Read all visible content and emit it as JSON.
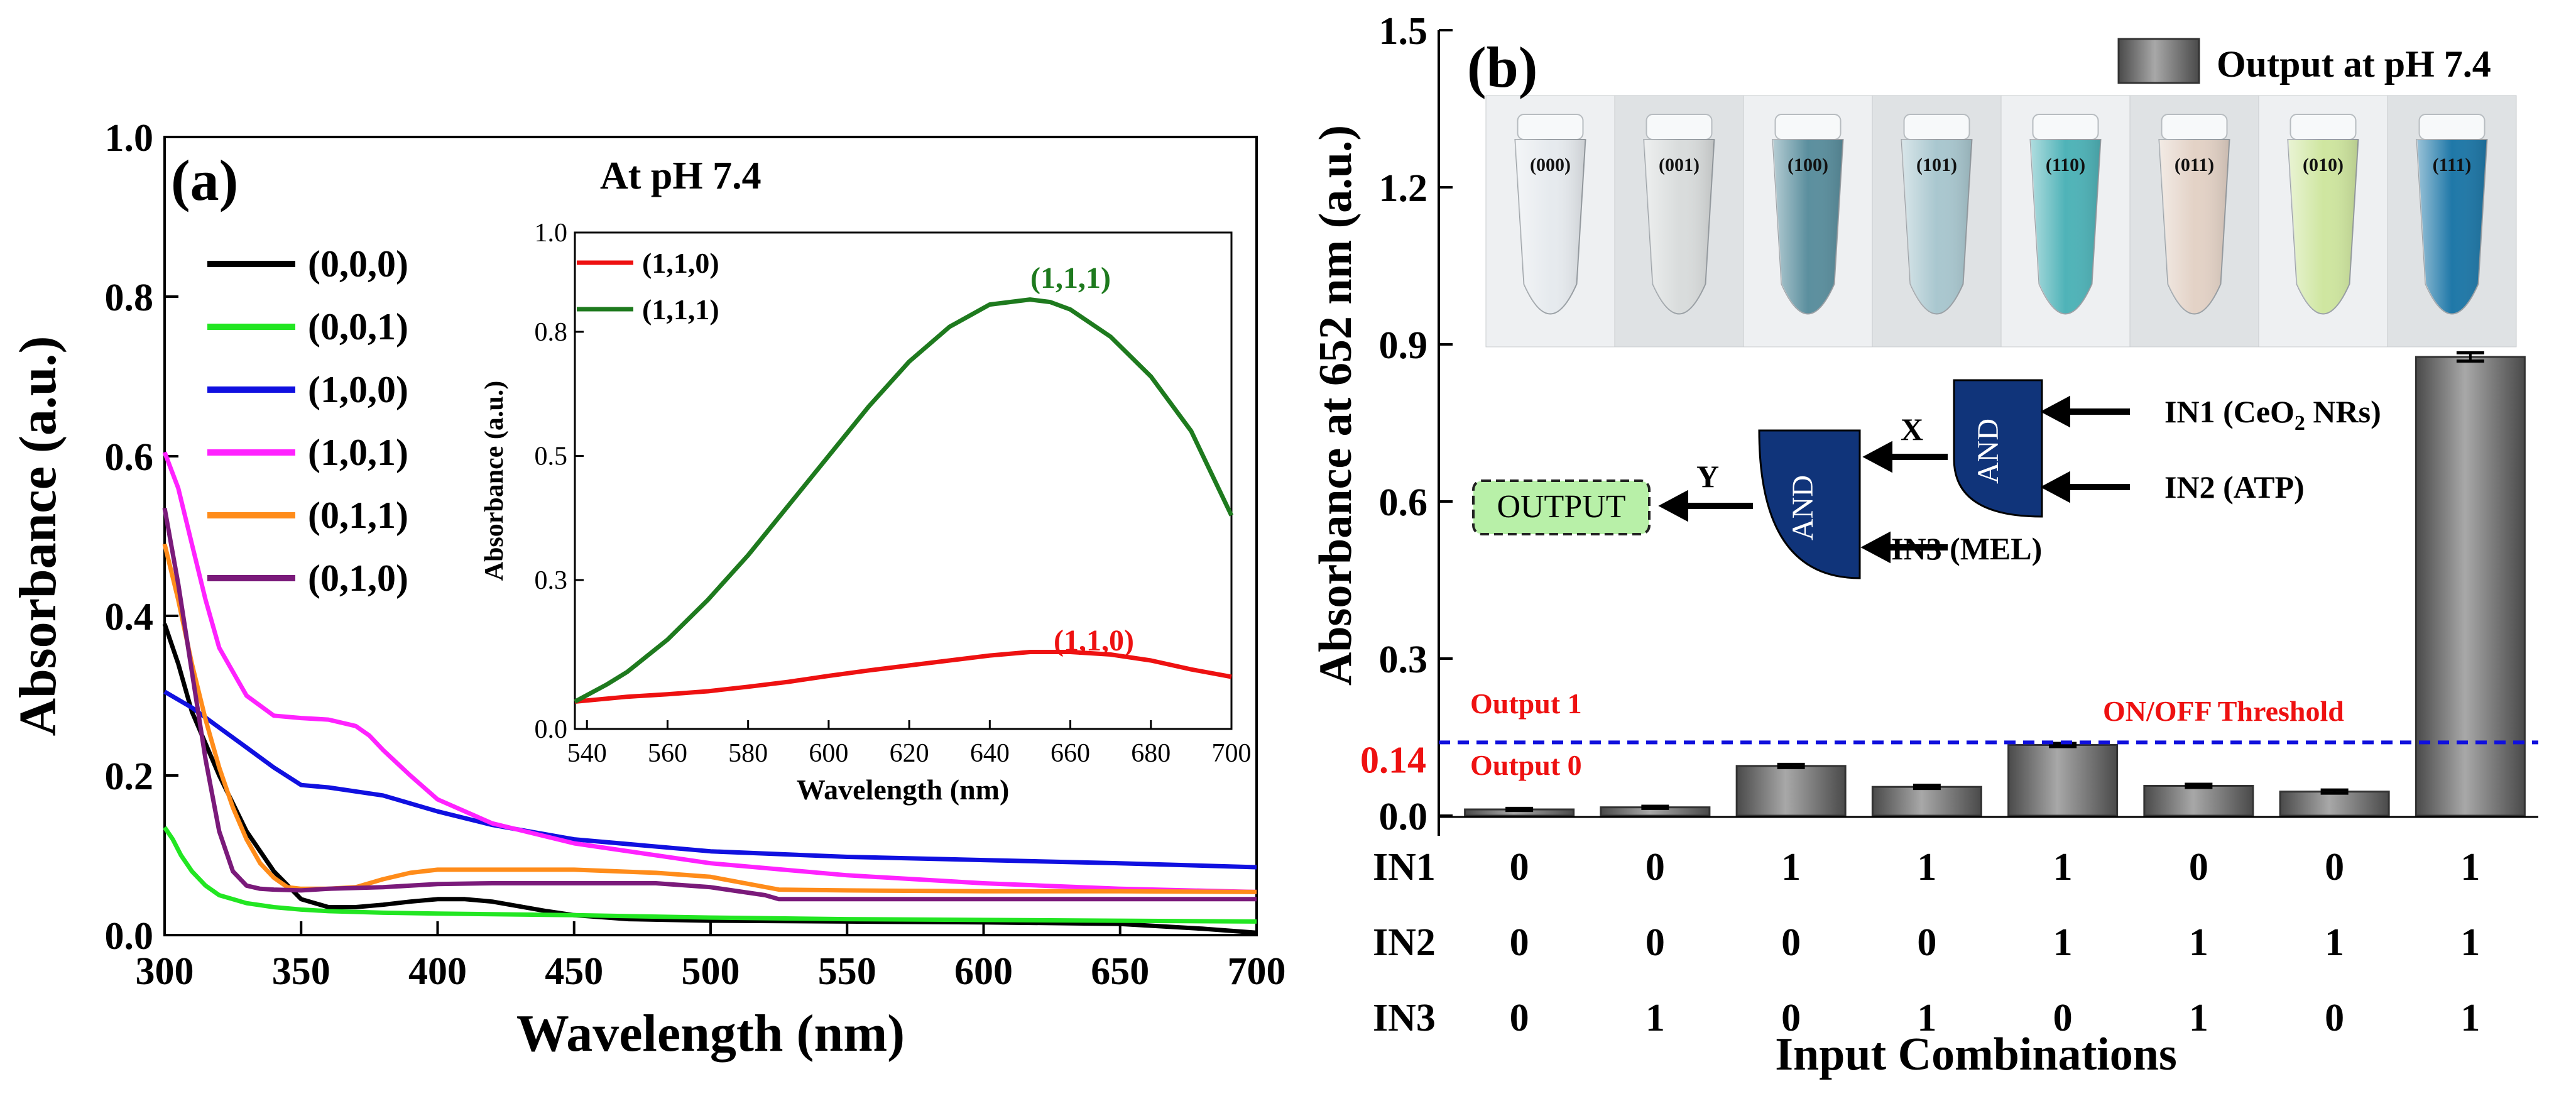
{
  "colors": {
    "black": "#000000",
    "green_bright": "#22e622",
    "blue": "#1010e0",
    "magenta": "#ff22ff",
    "orange": "#ff8c1a",
    "purple": "#7a1a7a",
    "red": "#ee1111",
    "dark_green": "#1e7a1e",
    "threshold_blue": "#1010dd",
    "gate_navy": "#10347a",
    "output_box": "#b8f0a8",
    "bar_fill": "#777777"
  },
  "chart_data": [
    {
      "type": "line",
      "panel_label": "(a)",
      "title": "At pH 7.4",
      "xlabel": "Wavelength (nm)",
      "ylabel": "Absorbance (a.u.)",
      "xlim": [
        300,
        700
      ],
      "ylim": [
        0,
        1.0
      ],
      "xticks": [
        "300",
        "350",
        "400",
        "450",
        "500",
        "550",
        "600",
        "650",
        "700"
      ],
      "yticks": [
        "0.0",
        "0.2",
        "0.4",
        "0.6",
        "0.8",
        "1.0"
      ],
      "series": [
        {
          "name": "(0,0,0)",
          "color": "#000000",
          "x": [
            300,
            305,
            310,
            320,
            330,
            340,
            350,
            360,
            370,
            380,
            390,
            400,
            410,
            420,
            430,
            440,
            450,
            470,
            500,
            550,
            600,
            650,
            680,
            700
          ],
          "y": [
            0.39,
            0.34,
            0.28,
            0.2,
            0.13,
            0.08,
            0.045,
            0.035,
            0.035,
            0.038,
            0.042,
            0.045,
            0.045,
            0.042,
            0.036,
            0.03,
            0.025,
            0.02,
            0.018,
            0.017,
            0.016,
            0.014,
            0.008,
            0.003
          ]
        },
        {
          "name": "(0,0,1)",
          "color": "#22e622",
          "x": [
            300,
            303,
            306,
            310,
            315,
            320,
            330,
            340,
            350,
            360,
            380,
            400,
            450,
            500,
            550,
            600,
            650,
            700
          ],
          "y": [
            0.135,
            0.12,
            0.1,
            0.08,
            0.062,
            0.05,
            0.04,
            0.035,
            0.032,
            0.03,
            0.028,
            0.027,
            0.025,
            0.022,
            0.02,
            0.019,
            0.018,
            0.017
          ]
        },
        {
          "name": "(1,0,0)",
          "color": "#1010e0",
          "x": [
            300,
            310,
            320,
            330,
            340,
            350,
            360,
            380,
            400,
            420,
            450,
            500,
            550,
            600,
            650,
            700
          ],
          "y": [
            0.305,
            0.285,
            0.26,
            0.235,
            0.21,
            0.188,
            0.185,
            0.175,
            0.155,
            0.138,
            0.12,
            0.105,
            0.098,
            0.094,
            0.09,
            0.085
          ]
        },
        {
          "name": "(1,0,1)",
          "color": "#ff22ff",
          "x": [
            300,
            305,
            310,
            315,
            320,
            330,
            340,
            350,
            360,
            370,
            375,
            380,
            390,
            400,
            420,
            450,
            500,
            550,
            600,
            650,
            700
          ],
          "y": [
            0.605,
            0.56,
            0.49,
            0.42,
            0.36,
            0.3,
            0.275,
            0.272,
            0.27,
            0.262,
            0.25,
            0.232,
            0.2,
            0.17,
            0.14,
            0.115,
            0.09,
            0.075,
            0.065,
            0.058,
            0.054
          ]
        },
        {
          "name": "(0,1,1)",
          "color": "#ff8c1a",
          "x": [
            300,
            305,
            310,
            315,
            320,
            325,
            330,
            335,
            340,
            345,
            350,
            360,
            370,
            380,
            390,
            400,
            450,
            480,
            500,
            525,
            550,
            600,
            650,
            700
          ],
          "y": [
            0.49,
            0.42,
            0.34,
            0.27,
            0.21,
            0.16,
            0.12,
            0.09,
            0.072,
            0.06,
            0.058,
            0.058,
            0.06,
            0.07,
            0.078,
            0.082,
            0.082,
            0.078,
            0.073,
            0.057,
            0.056,
            0.055,
            0.055,
            0.054
          ]
        },
        {
          "name": "(0,1,0)",
          "color": "#7a1a7a",
          "x": [
            300,
            305,
            310,
            315,
            320,
            325,
            330,
            335,
            340,
            350,
            360,
            380,
            400,
            420,
            450,
            470,
            480,
            500,
            520,
            525,
            550,
            600,
            650,
            700
          ],
          "y": [
            0.535,
            0.44,
            0.33,
            0.22,
            0.13,
            0.08,
            0.062,
            0.058,
            0.057,
            0.056,
            0.058,
            0.06,
            0.064,
            0.065,
            0.065,
            0.065,
            0.065,
            0.06,
            0.05,
            0.045,
            0.045,
            0.045,
            0.045,
            0.045
          ]
        }
      ],
      "inset": {
        "type": "line",
        "xlabel": "Wavelength (nm)",
        "ylabel": "Absorbance (a.u.)",
        "xlim": [
          537,
          700
        ],
        "ylim": [
          0,
          1.0
        ],
        "xticks": [
          "540",
          "560",
          "580",
          "600",
          "620",
          "640",
          "660",
          "680",
          "700"
        ],
        "yticks": [
          "0.0",
          "0.3",
          "0.5",
          "0.8",
          "1.0"
        ],
        "series": [
          {
            "name": "(1,1,0)",
            "color": "#ee1111",
            "label": "(1,1,0)",
            "x": [
              537,
              550,
              560,
              570,
              580,
              590,
              600,
              610,
              620,
              630,
              640,
              650,
              660,
              670,
              680,
              690,
              700
            ],
            "y": [
              0.055,
              0.065,
              0.07,
              0.076,
              0.085,
              0.095,
              0.107,
              0.118,
              0.128,
              0.138,
              0.148,
              0.155,
              0.155,
              0.15,
              0.138,
              0.12,
              0.105
            ]
          },
          {
            "name": "(1,1,1)",
            "color": "#1e7a1e",
            "label": "(1,1,1)",
            "x": [
              537,
              545,
              550,
              560,
              570,
              580,
              590,
              600,
              610,
              620,
              630,
              640,
              650,
              655,
              660,
              670,
              680,
              690,
              700
            ],
            "y": [
              0.055,
              0.09,
              0.115,
              0.18,
              0.26,
              0.35,
              0.45,
              0.55,
              0.65,
              0.74,
              0.81,
              0.855,
              0.865,
              0.86,
              0.845,
              0.79,
              0.71,
              0.6,
              0.43
            ]
          }
        ]
      }
    },
    {
      "type": "bar",
      "panel_label": "(b)",
      "legend_label": "Output at pH 7.4",
      "xlabel": "Input Combinations",
      "ylabel": "Absorbance at 652 nm (a.u.)",
      "ylim": [
        0,
        1.5
      ],
      "yticks": [
        "0.0",
        "0.3",
        "0.6",
        "0.9",
        "1.2",
        "1.5"
      ],
      "threshold": {
        "value": 0.14,
        "tick_label": "0.14",
        "label": "ON/OFF Threshold",
        "above_label": "Output 1",
        "below_label": "Output 0"
      },
      "values": [
        0.012,
        0.016,
        0.095,
        0.055,
        0.135,
        0.057,
        0.046,
        0.876
      ],
      "errors": [
        0.002,
        0.002,
        0.003,
        0.003,
        0.003,
        0.003,
        0.003,
        0.008
      ],
      "input_rows": [
        {
          "label": "IN1",
          "values": [
            "0",
            "0",
            "1",
            "1",
            "1",
            "0",
            "0",
            "1"
          ]
        },
        {
          "label": "IN2",
          "values": [
            "0",
            "0",
            "0",
            "0",
            "1",
            "1",
            "1",
            "1"
          ]
        },
        {
          "label": "IN3",
          "values": [
            "0",
            "1",
            "0",
            "1",
            "0",
            "1",
            "0",
            "1"
          ]
        }
      ],
      "photo_tubes": [
        {
          "label": "(000)",
          "tint": "#e6eaee"
        },
        {
          "label": "(001)",
          "tint": "#d9dcdc"
        },
        {
          "label": "(100)",
          "tint": "#5b8f9e"
        },
        {
          "label": "(101)",
          "tint": "#a9c7cf"
        },
        {
          "label": "(110)",
          "tint": "#4fb3b8"
        },
        {
          "label": "(011)",
          "tint": "#e3d2c6"
        },
        {
          "label": "(010)",
          "tint": "#cfe6a0"
        },
        {
          "label": "(111)",
          "tint": "#1f78a8"
        }
      ],
      "logic": {
        "gate1": "AND",
        "gate2": "AND",
        "in1_prefix": "IN1 (CeO",
        "in1_sub": "2",
        "in1_suffix": " NRs)",
        "in2": "IN2 (ATP)",
        "in3": "IN3 (MEL)",
        "x_label": "X",
        "y_label": "Y",
        "output": "OUTPUT"
      }
    }
  ]
}
